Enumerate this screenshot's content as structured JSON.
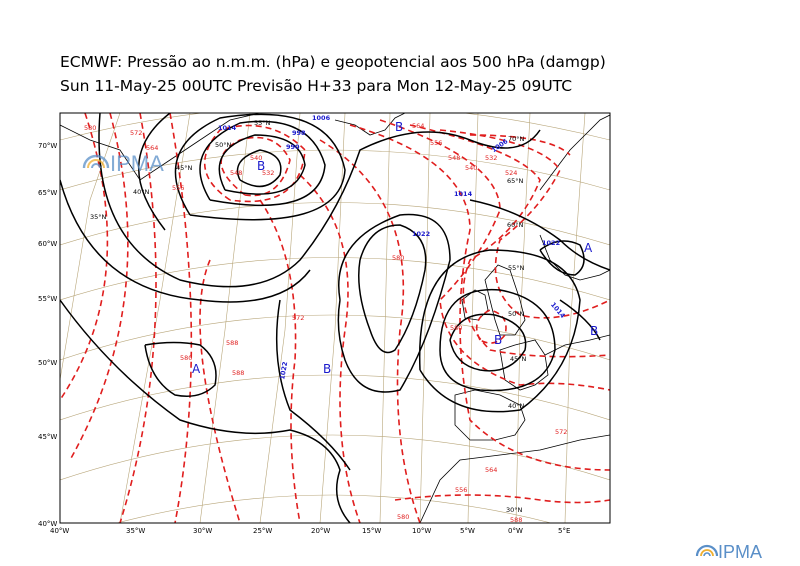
{
  "title": {
    "line1": "ECMWF:  Pressão ao n.m.m. (hPa) e geopotencial aos 500 hPa (damgp)",
    "line2": "Sun 11-May-25 00UTC Previsão H+33 para Mon 12-May-25 09UTC"
  },
  "logo_text": "IPMA",
  "lat_labels_left": [
    "70°W",
    "65°W",
    "60°W",
    "55°W",
    "50°W",
    "45°W",
    "40°W"
  ],
  "lon_labels_bottom": [
    "40°W",
    "35°W",
    "30°W",
    "25°W",
    "20°W",
    "15°W",
    "10°W",
    "5°W",
    "0°W",
    "5°E"
  ],
  "grid_labels": [
    "55°N",
    "50°N",
    "45°N",
    "40°N",
    "35°N",
    "30°N",
    "40°N",
    "45°N",
    "70°N",
    "65°N",
    "60°N",
    "55°N",
    "50°N"
  ],
  "isobar_labels": [
    "1014",
    "1006",
    "998",
    "990",
    "1014",
    "1022",
    "1022",
    "1022",
    "1014",
    "1006"
  ],
  "geopotential_labels": [
    "580",
    "572",
    "564",
    "556",
    "548",
    "540",
    "532",
    "580",
    "588",
    "572",
    "564",
    "556",
    "548",
    "540",
    "532",
    "524",
    "580",
    "588",
    "580",
    "572",
    "564",
    "556",
    "580",
    "588"
  ],
  "pressure_centers": [
    {
      "letter": "B",
      "kind": "low"
    },
    {
      "letter": "A",
      "kind": "high"
    },
    {
      "letter": "B",
      "kind": "low"
    },
    {
      "letter": "B",
      "kind": "low"
    },
    {
      "letter": "A",
      "kind": "high"
    },
    {
      "letter": "B",
      "kind": "low"
    },
    {
      "letter": "B",
      "kind": "low"
    }
  ],
  "colors": {
    "isobar": "#000000",
    "geopotential": "#e01e1e",
    "isobar_label": "#1a1acc",
    "graticule": "#b8a67a",
    "logo": "#5a8fc8"
  }
}
